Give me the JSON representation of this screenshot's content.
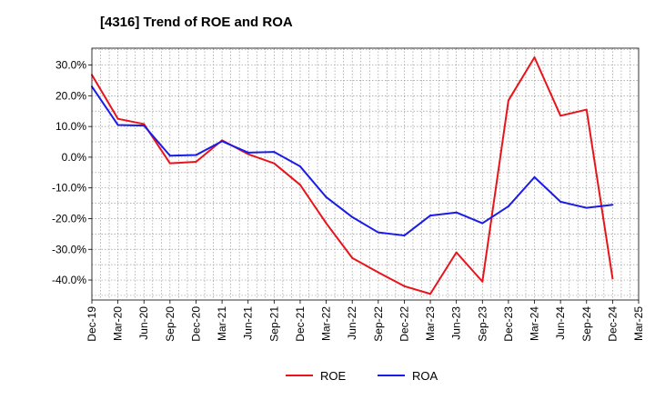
{
  "chart_data": {
    "type": "line",
    "title": "[4316]  Trend of ROE and ROA",
    "xlabel": "",
    "ylabel": "",
    "categories": [
      "Dec-19",
      "Mar-20",
      "Jun-20",
      "Sep-20",
      "Dec-20",
      "Mar-21",
      "Jun-21",
      "Sep-21",
      "Dec-21",
      "Mar-22",
      "Jun-22",
      "Sep-22",
      "Dec-22",
      "Mar-23",
      "Jun-23",
      "Sep-23",
      "Dec-23",
      "Mar-24",
      "Jun-24",
      "Sep-24",
      "Dec-24",
      "Mar-25"
    ],
    "x": [
      "2019-12",
      "2020-01",
      "2020-02",
      "2020-03",
      "2020-04",
      "2020-05",
      "2020-06",
      "2020-07",
      "2020-08",
      "2020-09",
      "2020-10",
      "2020-11",
      "2020-12",
      "2021-01",
      "2021-02",
      "2021-03",
      "2021-04",
      "2021-05",
      "2021-06",
      "2021-07",
      "2021-08",
      "2021-09",
      "2021-10",
      "2021-11",
      "2021-12",
      "2022-01",
      "2022-02",
      "2022-03",
      "2022-04",
      "2022-05",
      "2022-06",
      "2022-07",
      "2022-08",
      "2022-09",
      "2022-10",
      "2022-11",
      "2022-12",
      "2023-01",
      "2023-02",
      "2023-03",
      "2023-04",
      "2023-05",
      "2023-06",
      "2023-07",
      "2023-08",
      "2023-09",
      "2023-10",
      "2023-11",
      "2023-12",
      "2024-01",
      "2024-02",
      "2024-03",
      "2024-04",
      "2024-05",
      "2024-06",
      "2024-07",
      "2024-08",
      "2024-09",
      "2024-10",
      "2024-11",
      "2024-12",
      "2025-01",
      "2025-02",
      "2025-03"
    ],
    "yticks": [
      "30.0%",
      "20.0%",
      "10.0%",
      "0.0%",
      "-10.0%",
      "-20.0%",
      "-30.0%",
      "-40.0%"
    ],
    "ytick_values": [
      30,
      20,
      10,
      0,
      -10,
      -20,
      -30,
      -40
    ],
    "ylim": [
      -46.5,
      35.5
    ],
    "grid": true,
    "legend_position": "bottom",
    "series": [
      {
        "name": "ROE",
        "color": "#e8141b",
        "points": [
          [
            "2019-12",
            26.8
          ],
          [
            "2020-03",
            12.5
          ],
          [
            "2020-06",
            10.8
          ],
          [
            "2020-09",
            -2.0
          ],
          [
            "2020-12",
            -1.5
          ],
          [
            "2021-03",
            5.5
          ],
          [
            "2021-06",
            1.0
          ],
          [
            "2021-09",
            -2.0
          ],
          [
            "2021-12",
            -9.0
          ],
          [
            "2022-03",
            -21.5
          ],
          [
            "2022-06",
            -32.8
          ],
          [
            "2022-09",
            -37.5
          ],
          [
            "2022-12",
            -42.0
          ],
          [
            "2023-03",
            -44.5
          ],
          [
            "2023-06",
            -31.0
          ],
          [
            "2023-09",
            -40.5
          ],
          [
            "2023-12",
            18.5
          ],
          [
            "2024-03",
            32.5
          ],
          [
            "2024-06",
            13.5
          ],
          [
            "2024-09",
            15.5
          ],
          [
            "2024-12",
            -39.5
          ]
        ]
      },
      {
        "name": "ROA",
        "color": "#1b1be8",
        "points": [
          [
            "2019-12",
            23.0
          ],
          [
            "2020-03",
            10.5
          ],
          [
            "2020-06",
            10.3
          ],
          [
            "2020-09",
            0.5
          ],
          [
            "2020-12",
            0.7
          ],
          [
            "2021-03",
            5.2
          ],
          [
            "2021-06",
            1.5
          ],
          [
            "2021-09",
            1.7
          ],
          [
            "2021-12",
            -3.0
          ],
          [
            "2022-03",
            -13.0
          ],
          [
            "2022-06",
            -19.5
          ],
          [
            "2022-09",
            -24.5
          ],
          [
            "2022-12",
            -25.5
          ],
          [
            "2023-03",
            -19.0
          ],
          [
            "2023-06",
            -18.0
          ],
          [
            "2023-09",
            -21.5
          ],
          [
            "2023-12",
            -16.0
          ],
          [
            "2024-03",
            -6.5
          ],
          [
            "2024-06",
            -14.5
          ],
          [
            "2024-09",
            -16.5
          ],
          [
            "2024-12",
            -15.5
          ]
        ]
      }
    ]
  }
}
